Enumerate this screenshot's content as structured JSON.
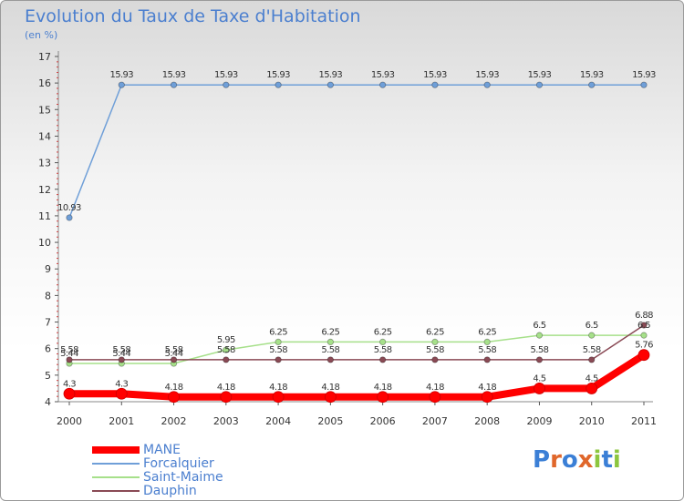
{
  "title": "Evolution du Taux de Taxe d'Habitation",
  "subtitle": "(en %)",
  "brand": {
    "text": "Proxiti",
    "colors": [
      "#3b7fd6",
      "#e0672b",
      "#3b7fd6",
      "#e0672b",
      "#8cc63f",
      "#3b7fd6",
      "#8cc63f"
    ]
  },
  "chart_data": {
    "type": "line",
    "x": [
      "2000",
      "2001",
      "2002",
      "2003",
      "2004",
      "2005",
      "2006",
      "2007",
      "2008",
      "2009",
      "2010",
      "2011"
    ],
    "ylim": [
      4,
      17
    ],
    "yticks": [
      "4",
      "5",
      "6",
      "7",
      "8",
      "9",
      "10",
      "11",
      "12",
      "13",
      "14",
      "15",
      "16",
      "17"
    ],
    "grid": false,
    "legend_position": "bottom-left",
    "series": [
      {
        "name": "MANE",
        "color": "#ff0000",
        "values": [
          4.3,
          4.3,
          4.18,
          4.18,
          4.18,
          4.18,
          4.18,
          4.18,
          4.18,
          4.5,
          4.5,
          5.76
        ],
        "labels": [
          "4.3",
          "4.3",
          "4.18",
          "4.18",
          "4.18",
          "4.18",
          "4.18",
          "4.18",
          "4.18",
          "4.5",
          "4.5",
          "5.76"
        ]
      },
      {
        "name": "Forcalquier",
        "color": "#6f9fd8",
        "values": [
          10.93,
          15.93,
          15.93,
          15.93,
          15.93,
          15.93,
          15.93,
          15.93,
          15.93,
          15.93,
          15.93,
          15.93
        ],
        "labels": [
          "10.93",
          "15.93",
          "15.93",
          "15.93",
          "15.93",
          "15.93",
          "15.93",
          "15.93",
          "15.93",
          "15.93",
          "15.93",
          "15.93"
        ]
      },
      {
        "name": "Saint-Maime",
        "color": "#a6e08a",
        "values": [
          5.44,
          5.44,
          5.44,
          5.95,
          6.25,
          6.25,
          6.25,
          6.25,
          6.25,
          6.5,
          6.5,
          6.5
        ],
        "labels": [
          "5.44",
          "5.44",
          "5.44",
          "5.95",
          "6.25",
          "6.25",
          "6.25",
          "6.25",
          "6.25",
          "6.5",
          "6.5",
          "6.5"
        ]
      },
      {
        "name": "Dauphin",
        "color": "#8a4a55",
        "values": [
          5.58,
          5.58,
          5.58,
          5.58,
          5.58,
          5.58,
          5.58,
          5.58,
          5.58,
          5.58,
          5.58,
          6.88
        ],
        "labels": [
          "5.58",
          "5.58",
          "5.58",
          "5.58",
          "5.58",
          "5.58",
          "5.58",
          "5.58",
          "5.58",
          "5.58",
          "5.58",
          "6.88"
        ]
      }
    ]
  }
}
